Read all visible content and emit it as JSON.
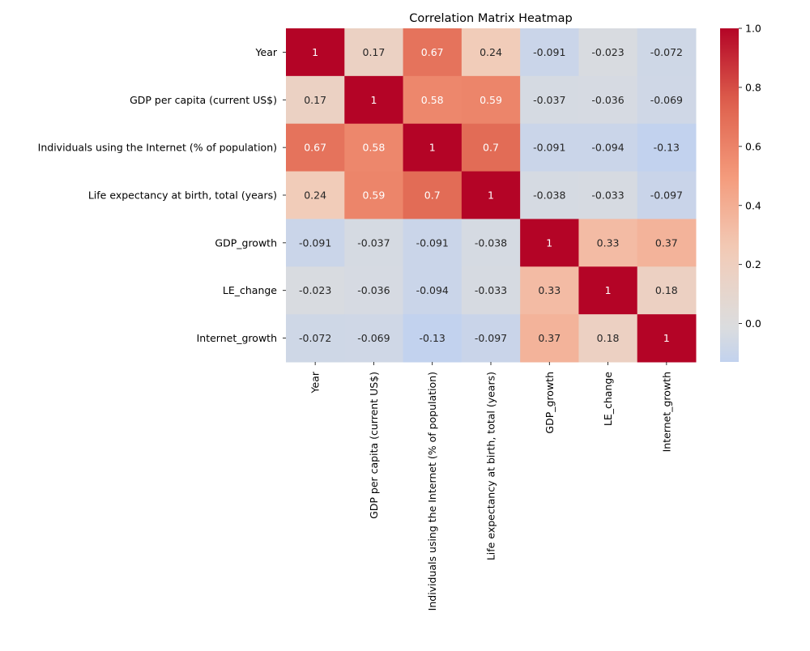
{
  "chart_data": {
    "type": "heatmap",
    "title": "Correlation Matrix Heatmap",
    "labels": [
      "Year",
      "GDP per capita (current US$)",
      "Individuals using the Internet (% of population)",
      "Life expectancy at birth, total (years)",
      "GDP_growth",
      "LE_change",
      "Internet_growth"
    ],
    "matrix": [
      [
        1,
        0.17,
        0.67,
        0.24,
        -0.091,
        -0.023,
        -0.072
      ],
      [
        0.17,
        1,
        0.58,
        0.59,
        -0.037,
        -0.036,
        -0.069
      ],
      [
        0.67,
        0.58,
        1,
        0.7,
        -0.091,
        -0.094,
        -0.13
      ],
      [
        0.24,
        0.59,
        0.7,
        1,
        -0.038,
        -0.033,
        -0.097
      ],
      [
        -0.091,
        -0.037,
        -0.091,
        -0.038,
        1,
        0.33,
        0.37
      ],
      [
        -0.023,
        -0.036,
        -0.094,
        -0.033,
        0.33,
        1,
        0.18
      ],
      [
        -0.072,
        -0.069,
        -0.13,
        -0.097,
        0.37,
        0.18,
        1
      ]
    ],
    "colormap": "coolwarm",
    "center": 0,
    "vmin": -0.13,
    "vmax": 1.0,
    "annotated": true,
    "colorbar": {
      "ticks": [
        0.0,
        0.2,
        0.4,
        0.6,
        0.8,
        1.0
      ],
      "tick_labels": [
        "0.0",
        "0.2",
        "0.4",
        "0.6",
        "0.8",
        "1.0"
      ],
      "placement": "right"
    }
  }
}
